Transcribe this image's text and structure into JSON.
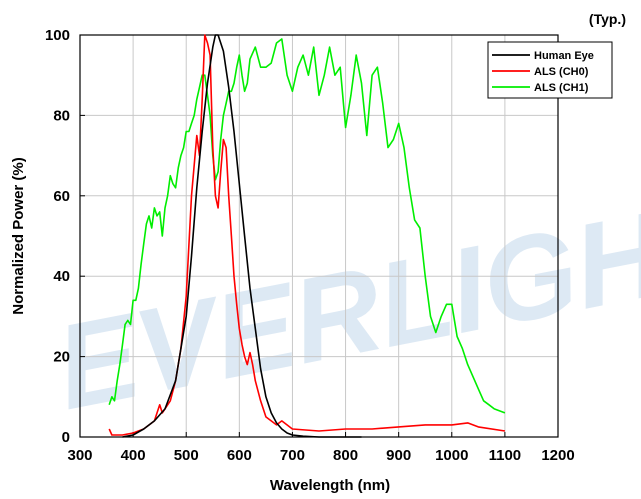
{
  "chart_data": {
    "type": "line",
    "title": "",
    "note": "(Typ.)",
    "xlabel": "Wavelength (nm)",
    "ylabel": "Normalized Power (%)",
    "xlim": [
      300,
      1200
    ],
    "ylim": [
      0,
      100
    ],
    "xticks": [
      "300",
      "400",
      "500",
      "600",
      "700",
      "800",
      "900",
      "1000",
      "1100",
      "1200"
    ],
    "yticks": [
      "0",
      "20",
      "40",
      "60",
      "80",
      "100"
    ],
    "grid": true,
    "legend_position": "top-right",
    "watermark": "EVERLIGHT",
    "series": [
      {
        "name": "Human Eye",
        "color": "#000000",
        "x": [
          380,
          400,
          420,
          440,
          460,
          480,
          500,
          510,
          520,
          530,
          540,
          550,
          555,
          560,
          570,
          580,
          590,
          600,
          610,
          620,
          630,
          640,
          650,
          660,
          670,
          680,
          690,
          700,
          720,
          750,
          800,
          830
        ],
        "y": [
          0,
          0.5,
          2,
          4,
          7,
          14,
          30,
          45,
          62,
          76,
          88,
          97,
          100,
          100,
          96,
          87,
          76,
          63,
          50,
          37,
          27,
          17,
          10,
          6,
          3.5,
          2,
          1,
          0.5,
          0.2,
          0,
          0,
          0
        ]
      },
      {
        "name": "ALS (CH0)",
        "color": "#ff0000",
        "x": [
          355,
          360,
          380,
          400,
          420,
          440,
          450,
          455,
          470,
          480,
          490,
          500,
          510,
          520,
          525,
          530,
          535,
          540,
          545,
          550,
          555,
          560,
          565,
          570,
          575,
          580,
          585,
          590,
          595,
          600,
          605,
          610,
          615,
          620,
          625,
          630,
          640,
          650,
          660,
          670,
          680,
          700,
          750,
          800,
          850,
          900,
          950,
          1000,
          1030,
          1050,
          1100
        ],
        "y": [
          2,
          0.5,
          0.5,
          1,
          2,
          4,
          8,
          6,
          9,
          14,
          22,
          35,
          60,
          75,
          70,
          84,
          100,
          98,
          95,
          72,
          60,
          57,
          66,
          74,
          72,
          60,
          50,
          40,
          33,
          27,
          23,
          20,
          18,
          21,
          18,
          14,
          9,
          5,
          4,
          3,
          4,
          2,
          1.5,
          2,
          2,
          2.5,
          3,
          3,
          3.5,
          2.5,
          1.5
        ]
      },
      {
        "name": "ALS (CH1)",
        "color": "#00ee00",
        "x": [
          355,
          360,
          365,
          370,
          375,
          380,
          385,
          390,
          395,
          400,
          405,
          410,
          415,
          420,
          425,
          430,
          435,
          440,
          445,
          450,
          455,
          460,
          465,
          470,
          475,
          480,
          485,
          490,
          495,
          500,
          505,
          510,
          515,
          520,
          525,
          530,
          535,
          540,
          545,
          550,
          555,
          560,
          565,
          570,
          575,
          580,
          585,
          590,
          595,
          600,
          605,
          610,
          615,
          620,
          630,
          640,
          650,
          660,
          670,
          680,
          690,
          700,
          710,
          720,
          730,
          740,
          750,
          760,
          770,
          780,
          790,
          800,
          810,
          820,
          830,
          840,
          850,
          860,
          870,
          880,
          890,
          900,
          910,
          920,
          930,
          940,
          950,
          960,
          970,
          980,
          990,
          1000,
          1010,
          1020,
          1030,
          1040,
          1050,
          1060,
          1070,
          1080,
          1090,
          1100
        ],
        "y": [
          8,
          10,
          9,
          14,
          18,
          23,
          28,
          29,
          28,
          34,
          34,
          37,
          43,
          48,
          53,
          55,
          52,
          57,
          55,
          56,
          50,
          57,
          60,
          65,
          63,
          62,
          67,
          70,
          72,
          76,
          76,
          78,
          80,
          84,
          87,
          90,
          90,
          85,
          80,
          70,
          64,
          66,
          74,
          80,
          83,
          86,
          86,
          88,
          92,
          95,
          90,
          86,
          88,
          94,
          97,
          92,
          92,
          93,
          98,
          99,
          90,
          86,
          92,
          95,
          90,
          97,
          85,
          90,
          97,
          90,
          92,
          77,
          85,
          95,
          88,
          75,
          90,
          92,
          83,
          72,
          74,
          78,
          72,
          62,
          54,
          52,
          40,
          30,
          26,
          30,
          33,
          33,
          25,
          22,
          18,
          15,
          12,
          9,
          8,
          7,
          6.5,
          6
        ]
      }
    ]
  }
}
